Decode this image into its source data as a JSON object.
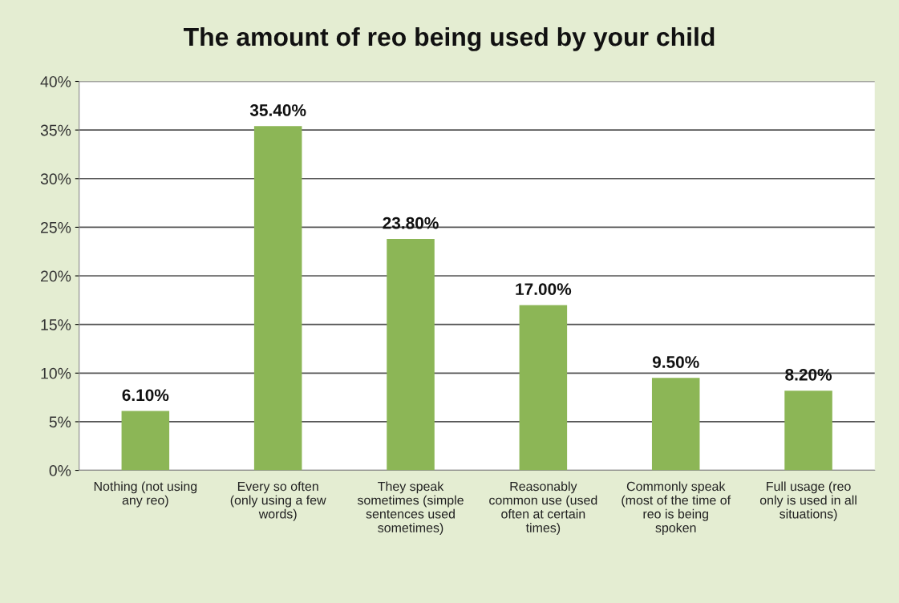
{
  "chart_data": {
    "type": "bar",
    "title": "The amount of reo being used by your child",
    "categories": [
      "Nothing (not using\nany reo)",
      "Every so often\n(only using a few\nwords)",
      "They speak\nsometimes (simple\nsentences used\nsometimes)",
      "Reasonably\ncommon use (used\noften at certain\ntimes)",
      "Commonly speak\n(most of the time of\nreo is being\nspoken",
      "Full usage (reo\nonly is used in all\nsituations)"
    ],
    "values": [
      6.1,
      35.4,
      23.8,
      17.0,
      9.5,
      8.2
    ],
    "value_labels": [
      "6.10%",
      "35.40%",
      "23.80%",
      "17.00%",
      "9.50%",
      "8.20%"
    ],
    "color": "#8cb656",
    "ylim": [
      0,
      40
    ],
    "yticks": [
      {
        "value": 0,
        "label": "0%"
      },
      {
        "value": 5,
        "label": "5%"
      },
      {
        "value": 10,
        "label": "10%"
      },
      {
        "value": 15,
        "label": "15%"
      },
      {
        "value": 20,
        "label": "20%"
      },
      {
        "value": 25,
        "label": "25%"
      },
      {
        "value": 30,
        "label": "30%"
      },
      {
        "value": 35,
        "label": "35%"
      },
      {
        "value": 40,
        "label": "40%"
      }
    ],
    "grid": "y",
    "legend": false
  }
}
